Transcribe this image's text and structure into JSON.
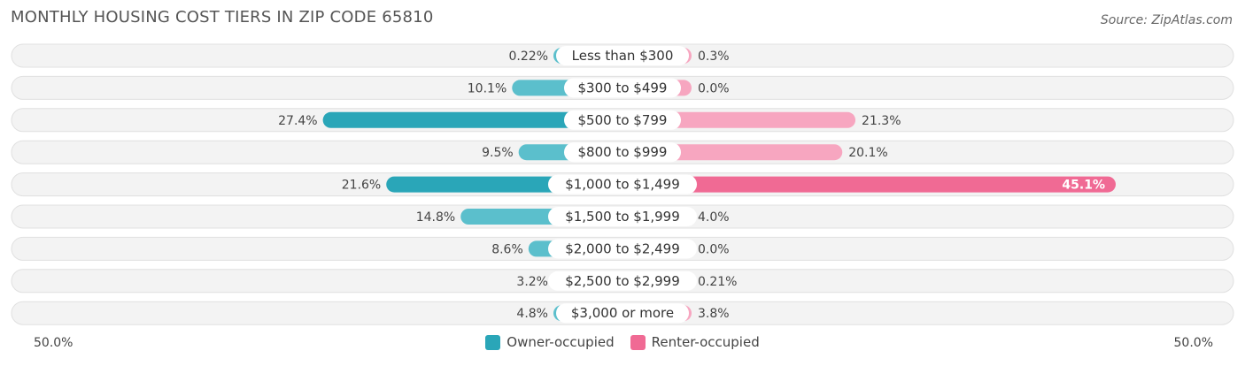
{
  "title": "MONTHLY HOUSING COST TIERS IN ZIP CODE 65810",
  "source": "Source: ZipAtlas.com",
  "colors": {
    "owner": "#5bbfcc",
    "owner_strong": "#2aa6b8",
    "renter": "#f7a6c0",
    "renter_strong": "#f06a94"
  },
  "axis": {
    "left_label": "50.0%",
    "right_label": "50.0%"
  },
  "legend": {
    "owner_label": "Owner-occupied",
    "renter_label": "Renter-occupied"
  },
  "chart_data": {
    "type": "bar",
    "orientation": "horizontal-diverging",
    "title": "MONTHLY HOUSING COST TIERS IN ZIP CODE 65810",
    "categories": [
      "Less than $300",
      "$300 to $499",
      "$500 to $799",
      "$800 to $999",
      "$1,000 to $1,499",
      "$1,500 to $1,999",
      "$2,000 to $2,499",
      "$2,500 to $2,999",
      "$3,000 or more"
    ],
    "series": [
      {
        "name": "Owner-occupied",
        "values": [
          0.22,
          10.1,
          27.4,
          9.5,
          21.6,
          14.8,
          8.6,
          3.2,
          4.8
        ],
        "labels": [
          "0.22%",
          "10.1%",
          "27.4%",
          "9.5%",
          "21.6%",
          "14.8%",
          "8.6%",
          "3.2%",
          "4.8%"
        ]
      },
      {
        "name": "Renter-occupied",
        "values": [
          0.3,
          0.0,
          21.3,
          20.1,
          45.1,
          4.0,
          0.0,
          0.21,
          3.8
        ],
        "labels": [
          "0.3%",
          "0.0%",
          "21.3%",
          "20.1%",
          "45.1%",
          "4.0%",
          "0.0%",
          "0.21%",
          "3.8%"
        ]
      }
    ],
    "xlim": [
      -50,
      50
    ],
    "legend_position": "bottom-center"
  }
}
